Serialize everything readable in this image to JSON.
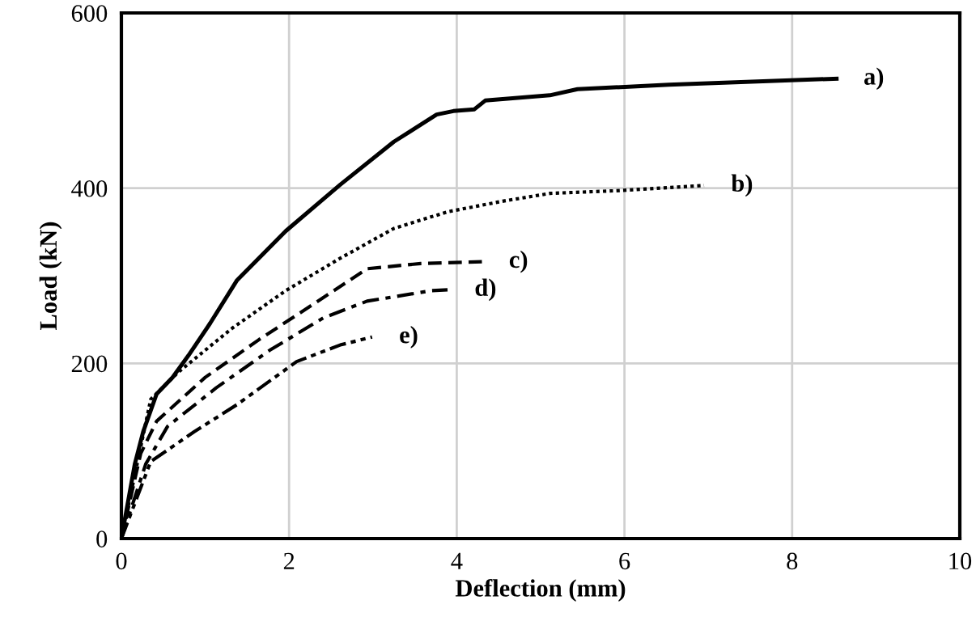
{
  "chart_data": {
    "type": "line",
    "xlabel": "Deflection (mm)",
    "ylabel": "Load (kN)",
    "xlim": [
      0,
      10
    ],
    "ylim": [
      0,
      600
    ],
    "xticks": [
      0,
      2,
      4,
      6,
      8,
      10
    ],
    "yticks": [
      0,
      200,
      400,
      600
    ],
    "grid": true,
    "legend": false,
    "marker": "none",
    "series": [
      {
        "color": "#000000",
        "line_style": "solid",
        "x": [
          0,
          0.16,
          0.26,
          0.42,
          0.61,
          0.8,
          1.06,
          1.38,
          1.96,
          2.61,
          3.25,
          3.76,
          3.96,
          4.21,
          4.34,
          5.11,
          5.44,
          6.53,
          8.53
        ],
        "values": [
          0,
          85,
          122,
          165,
          184,
          209,
          246,
          295,
          351,
          404,
          453,
          484,
          488,
          490,
          500,
          506,
          513,
          518,
          525
        ]
      },
      {
        "color": "#000000",
        "line_style": "dotted",
        "x": [
          0,
          0.35,
          0.68,
          1.32,
          1.96,
          2.61,
          3.25,
          3.89,
          4.54,
          5.11,
          5.89,
          6.95
        ],
        "values": [
          0,
          159,
          190,
          240,
          283,
          320,
          354,
          373,
          385,
          394,
          397,
          403
        ]
      },
      {
        "color": "#000000",
        "line_style": "dashed",
        "x": [
          0,
          0.23,
          0.42,
          1.0,
          1.64,
          2.28,
          2.93,
          3.57,
          4.3
        ],
        "values": [
          0,
          97,
          134,
          184,
          227,
          267,
          308,
          314,
          316
        ]
      },
      {
        "color": "#000000",
        "line_style": "dashdot",
        "x": [
          0,
          0.29,
          0.55,
          1.13,
          1.77,
          2.41,
          2.93,
          3.7,
          3.89
        ],
        "values": [
          0,
          85,
          128,
          172,
          215,
          252,
          271,
          283,
          284
        ]
      },
      {
        "color": "#000000",
        "line_style": "dashdotdot",
        "x": [
          0,
          0.35,
          0.87,
          1.38,
          2.09,
          2.61,
          2.99
        ],
        "values": [
          0,
          88,
          122,
          153,
          202,
          221,
          230
        ]
      }
    ],
    "annotations": [
      {
        "text": "a)",
        "x": 8.53,
        "y": 525
      },
      {
        "text": "b)",
        "x": 6.95,
        "y": 403
      },
      {
        "text": "c)",
        "x": 4.3,
        "y": 316
      },
      {
        "text": "d)",
        "x": 3.89,
        "y": 284
      },
      {
        "text": "e)",
        "x": 2.99,
        "y": 230
      }
    ]
  }
}
